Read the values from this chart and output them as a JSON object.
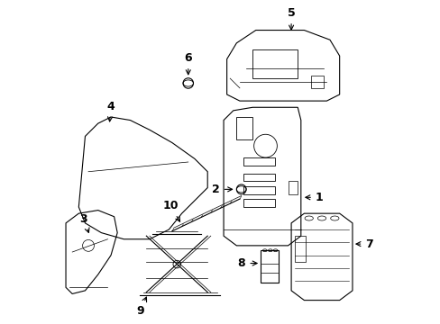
{
  "title": "",
  "background_color": "#ffffff",
  "figure_width": 4.89,
  "figure_height": 3.6,
  "dpi": 100,
  "line_color": "#000000",
  "label_fontsize": 9
}
